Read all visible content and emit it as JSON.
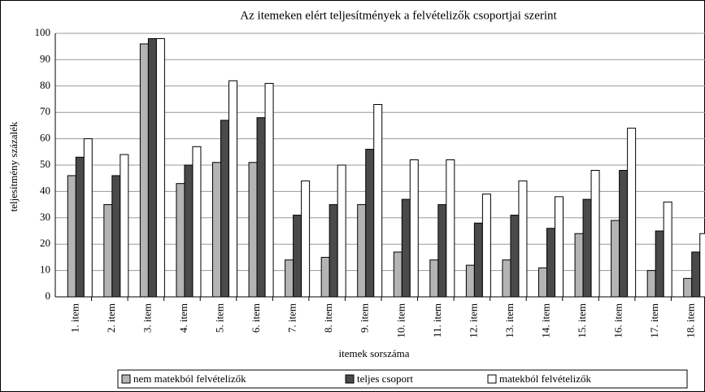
{
  "chart_data": {
    "type": "bar",
    "title": "Az itemeken elért teljesítmények a felvételizők csoportjai szerint",
    "y_label": "teljesítmény százalék",
    "x_label": "itemek sorszáma",
    "categories": [
      "1. item",
      "2. item",
      "3. item",
      "4. item",
      "5. item",
      "6. item",
      "7. item",
      "8. item",
      "9. item",
      "10. item",
      "11. item",
      "12. item",
      "13. item",
      "14. item",
      "15. item",
      "16. item",
      "17. item",
      "18. item"
    ],
    "series": [
      {
        "name": "nem matekból felvételizők",
        "color": "#b4b4b4",
        "values": [
          46,
          35,
          96,
          43,
          51,
          51,
          14,
          15,
          35,
          17,
          14,
          12,
          14,
          11,
          24,
          29,
          10,
          7
        ]
      },
      {
        "name": "teljes csoport",
        "color": "#4a4a4a",
        "values": [
          53,
          46,
          98,
          50,
          67,
          68,
          31,
          35,
          56,
          37,
          35,
          28,
          31,
          26,
          37,
          48,
          25,
          17
        ]
      },
      {
        "name": "matekból felvételizők",
        "color": "#ffffff",
        "values": [
          60,
          54,
          98,
          57,
          82,
          81,
          44,
          50,
          73,
          52,
          52,
          39,
          44,
          38,
          48,
          64,
          36,
          24
        ]
      }
    ],
    "ylim": [
      0,
      100
    ],
    "yticks": [
      0,
      10,
      20,
      30,
      40,
      50,
      60,
      70,
      80,
      90,
      100
    ],
    "grid": true
  }
}
